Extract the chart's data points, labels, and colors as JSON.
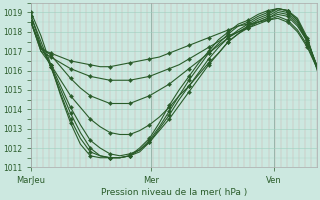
{
  "xlabel": "Pression niveau de la mer( hPa )",
  "ylim": [
    1011,
    1019.5
  ],
  "yticks": [
    1011,
    1012,
    1013,
    1014,
    1015,
    1016,
    1017,
    1018,
    1019
  ],
  "xtick_labels": [
    "MarJeu",
    "Mer",
    "Ven"
  ],
  "xtick_positions": [
    0.0,
    0.42,
    0.85
  ],
  "bg_color": "#cce8e0",
  "grid_color": "#9ecfbf",
  "line_color": "#2a5c2a",
  "lines": [
    [
      1018.5,
      1017.1,
      1016.9,
      1016.7,
      1016.5,
      1016.4,
      1016.3,
      1016.2,
      1016.2,
      1016.3,
      1016.4,
      1016.5,
      1016.6,
      1016.7,
      1016.9,
      1017.1,
      1017.3,
      1017.5,
      1017.7,
      1017.9,
      1018.1,
      1018.3,
      1018.4,
      1018.5,
      1018.6,
      1018.7,
      1018.5,
      1018.0,
      1017.2,
      1016.1
    ],
    [
      1018.5,
      1017.0,
      1016.7,
      1016.4,
      1016.1,
      1015.9,
      1015.7,
      1015.6,
      1015.5,
      1015.5,
      1015.5,
      1015.6,
      1015.7,
      1015.9,
      1016.1,
      1016.3,
      1016.6,
      1016.9,
      1017.2,
      1017.5,
      1017.8,
      1018.0,
      1018.2,
      1018.4,
      1018.6,
      1018.8,
      1018.6,
      1018.1,
      1017.3,
      1016.1
    ],
    [
      1018.5,
      1017.2,
      1016.8,
      1016.2,
      1015.6,
      1015.1,
      1014.7,
      1014.5,
      1014.3,
      1014.3,
      1014.3,
      1014.5,
      1014.7,
      1015.0,
      1015.3,
      1015.7,
      1016.1,
      1016.5,
      1016.9,
      1017.3,
      1017.7,
      1018.0,
      1018.3,
      1018.5,
      1018.7,
      1018.9,
      1018.8,
      1018.3,
      1017.5,
      1016.2
    ],
    [
      1018.5,
      1017.0,
      1016.3,
      1015.5,
      1014.7,
      1014.1,
      1013.5,
      1013.1,
      1012.8,
      1012.7,
      1012.7,
      1012.9,
      1013.2,
      1013.6,
      1014.1,
      1014.7,
      1015.2,
      1015.8,
      1016.4,
      1016.9,
      1017.5,
      1017.9,
      1018.2,
      1018.5,
      1018.7,
      1019.0,
      1018.9,
      1018.4,
      1017.5,
      1016.2
    ],
    [
      1018.5,
      1017.2,
      1016.3,
      1015.2,
      1014.1,
      1013.2,
      1012.4,
      1012.0,
      1011.7,
      1011.6,
      1011.7,
      1011.9,
      1012.3,
      1012.9,
      1013.5,
      1014.2,
      1014.9,
      1015.6,
      1016.3,
      1016.9,
      1017.5,
      1017.9,
      1018.3,
      1018.6,
      1018.8,
      1019.1,
      1019.0,
      1018.5,
      1017.5,
      1016.2
    ],
    [
      1018.8,
      1017.3,
      1016.2,
      1015.0,
      1013.8,
      1012.8,
      1012.0,
      1011.6,
      1011.5,
      1011.5,
      1011.6,
      1011.8,
      1012.3,
      1013.0,
      1013.7,
      1014.5,
      1015.2,
      1015.9,
      1016.6,
      1017.2,
      1017.7,
      1018.1,
      1018.4,
      1018.7,
      1018.9,
      1019.2,
      1019.1,
      1018.6,
      1017.6,
      1016.2
    ],
    [
      1018.8,
      1017.5,
      1016.2,
      1014.8,
      1013.5,
      1012.5,
      1011.8,
      1011.6,
      1011.5,
      1011.5,
      1011.6,
      1011.9,
      1012.4,
      1013.1,
      1013.9,
      1014.7,
      1015.5,
      1016.2,
      1016.9,
      1017.4,
      1017.9,
      1018.3,
      1018.5,
      1018.8,
      1019.0,
      1019.2,
      1019.1,
      1018.6,
      1017.6,
      1016.1
    ],
    [
      1019.0,
      1017.8,
      1016.3,
      1014.7,
      1013.3,
      1012.2,
      1011.6,
      1011.5,
      1011.5,
      1011.5,
      1011.6,
      1012.0,
      1012.5,
      1013.3,
      1014.2,
      1015.0,
      1015.7,
      1016.4,
      1017.0,
      1017.6,
      1018.0,
      1018.4,
      1018.6,
      1018.9,
      1019.1,
      1019.2,
      1019.1,
      1018.7,
      1017.7,
      1016.0
    ]
  ],
  "n_points": 30,
  "linewidth": 0.8,
  "markersize": 2.2,
  "marker_every": 2
}
